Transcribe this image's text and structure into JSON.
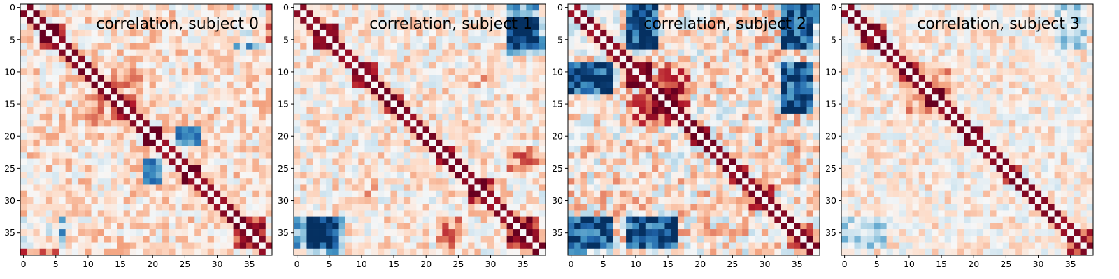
{
  "chart_data": [
    {
      "type": "heatmap",
      "title": "correlation, subject 0",
      "xlabel": "",
      "ylabel": "",
      "xticks": [
        0,
        5,
        10,
        15,
        20,
        25,
        30,
        35
      ],
      "yticks": [
        0,
        5,
        10,
        15,
        20,
        25,
        30,
        35
      ],
      "xlim": [
        -0.5,
        38.5
      ],
      "ylim": [
        38.5,
        -0.5
      ],
      "size": 39,
      "colormap": "RdBu_r",
      "vrange": [
        -1,
        1
      ],
      "note": "matrix values estimated from the color map",
      "seed": 11,
      "base": 0.12,
      "noise": 0.3,
      "blocks": [
        [
          3,
          6,
          0.75
        ],
        [
          9,
          11,
          0.4
        ],
        [
          15,
          17,
          0.45
        ],
        [
          19,
          21,
          0.8
        ],
        [
          25,
          27,
          0.65
        ],
        [
          33,
          37,
          0.6
        ]
      ],
      "cross": [
        [
          0,
          6,
          33,
          37,
          -0.55
        ],
        [
          33,
          38,
          0,
          5,
          0.45
        ],
        [
          19,
          21,
          24,
          27,
          -0.4
        ],
        [
          24,
          27,
          19,
          21,
          -0.35
        ],
        [
          10,
          14,
          14,
          18,
          0.25
        ]
      ]
    },
    {
      "type": "heatmap",
      "title": "correlation, subject 1",
      "xlabel": "",
      "ylabel": "",
      "xticks": [
        0,
        5,
        10,
        15,
        20,
        25,
        30,
        35
      ],
      "yticks": [
        0,
        5,
        10,
        15,
        20,
        25,
        30,
        35
      ],
      "xlim": [
        -0.5,
        38.5
      ],
      "ylim": [
        38.5,
        -0.5
      ],
      "size": 39,
      "colormap": "RdBu_r",
      "vrange": [
        -1,
        1
      ],
      "note": "matrix values estimated from the color map",
      "seed": 23,
      "base": 0.08,
      "noise": 0.3,
      "blocks": [
        [
          3,
          6,
          0.7
        ],
        [
          9,
          12,
          0.7
        ],
        [
          14,
          16,
          0.75
        ],
        [
          22,
          24,
          0.6
        ],
        [
          27,
          30,
          0.7
        ],
        [
          33,
          37,
          0.8
        ]
      ],
      "cross": [
        [
          0,
          6,
          33,
          37,
          -0.55
        ],
        [
          33,
          38,
          2,
          7,
          -0.5
        ],
        [
          22,
          25,
          33,
          37,
          0.35
        ],
        [
          9,
          12,
          27,
          30,
          0.2
        ]
      ]
    },
    {
      "type": "heatmap",
      "title": "correlation, subject 2",
      "xlabel": "",
      "ylabel": "",
      "xticks": [
        0,
        5,
        10,
        15,
        20,
        25,
        30,
        35
      ],
      "yticks": [
        0,
        5,
        10,
        15,
        20,
        25,
        30,
        35
      ],
      "xlim": [
        -0.5,
        38.5
      ],
      "ylim": [
        38.5,
        -0.5
      ],
      "size": 39,
      "colormap": "RdBu_r",
      "vrange": [
        -1,
        1
      ],
      "note": "matrix values estimated from the color map",
      "seed": 37,
      "base": 0.1,
      "noise": 0.4,
      "blocks": [
        [
          9,
          12,
          0.7
        ],
        [
          13,
          16,
          0.75
        ],
        [
          19,
          21,
          0.85
        ],
        [
          25,
          27,
          0.5
        ],
        [
          28,
          31,
          0.6
        ],
        [
          34,
          37,
          0.7
        ]
      ],
      "cross": [
        [
          0,
          6,
          9,
          13,
          -0.5
        ],
        [
          9,
          13,
          0,
          6,
          -0.5
        ],
        [
          0,
          6,
          33,
          37,
          -0.55
        ],
        [
          33,
          38,
          0,
          6,
          -0.45
        ],
        [
          9,
          16,
          33,
          37,
          -0.5
        ],
        [
          33,
          37,
          9,
          16,
          -0.45
        ],
        [
          9,
          16,
          14,
          18,
          0.4
        ]
      ]
    },
    {
      "type": "heatmap",
      "title": "correlation, subject 3",
      "xlabel": "",
      "ylabel": "",
      "xticks": [
        0,
        5,
        10,
        15,
        20,
        25,
        30,
        35
      ],
      "yticks": [
        0,
        5,
        10,
        15,
        20,
        25,
        30,
        35
      ],
      "xlim": [
        -0.5,
        38.5
      ],
      "ylim": [
        38.5,
        -0.5
      ],
      "size": 39,
      "colormap": "RdBu_r",
      "vrange": [
        -1,
        1
      ],
      "note": "matrix values estimated from the color map",
      "seed": 53,
      "base": 0.06,
      "noise": 0.27,
      "blocks": [
        [
          3,
          6,
          0.7
        ],
        [
          9,
          11,
          0.6
        ],
        [
          13,
          15,
          0.6
        ],
        [
          19,
          21,
          0.75
        ],
        [
          25,
          27,
          0.6
        ],
        [
          35,
          38,
          0.6
        ]
      ],
      "cross": [
        [
          9,
          16,
          9,
          16,
          0.3
        ],
        [
          0,
          6,
          33,
          37,
          -0.3
        ]
      ]
    }
  ]
}
